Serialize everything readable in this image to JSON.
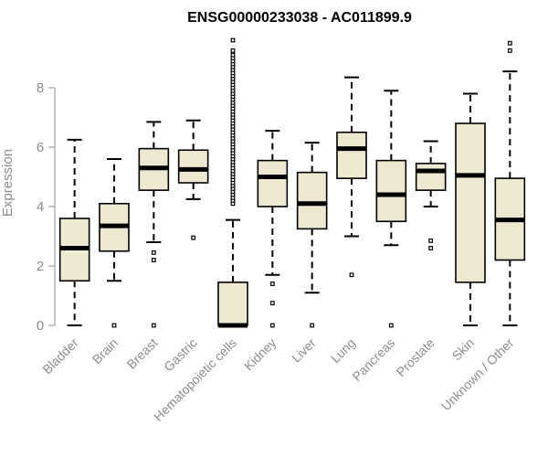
{
  "chart_data": {
    "type": "boxplot",
    "title": "ENSG00000233038 - AC011899.9",
    "xlabel": "",
    "ylabel": "Expression",
    "ylim": [
      0,
      9.8
    ],
    "yticks": [
      0,
      2,
      4,
      6,
      8
    ],
    "box_color": "#ede8d0",
    "outline_color": "#000000",
    "axis_color": "#8c8c8c",
    "categories": [
      "Bladder",
      "Brain",
      "Breast",
      "Gastric",
      "Hematopoietic cells",
      "Kidney",
      "Liver",
      "Lung",
      "Pancreas",
      "Prostate",
      "Skin",
      "Unknown / Other"
    ],
    "boxes": [
      {
        "name": "Bladder",
        "whisker_low": 0,
        "q1": 1.5,
        "median": 2.6,
        "q3": 3.6,
        "whisker_high": 6.25,
        "outliers": []
      },
      {
        "name": "Brain",
        "whisker_low": 1.5,
        "q1": 2.5,
        "median": 3.35,
        "q3": 4.1,
        "whisker_high": 5.6,
        "outliers": [
          0
        ]
      },
      {
        "name": "Breast",
        "whisker_low": 2.8,
        "q1": 4.55,
        "median": 5.3,
        "q3": 5.95,
        "whisker_high": 6.85,
        "outliers": [
          0,
          2.2,
          2.45
        ]
      },
      {
        "name": "Gastric",
        "whisker_low": 4.25,
        "q1": 4.8,
        "median": 5.25,
        "q3": 5.9,
        "whisker_high": 6.9,
        "outliers": [
          2.95
        ]
      },
      {
        "name": "Hematopoietic cells",
        "whisker_low": 0,
        "q1": 0,
        "median": 0,
        "q3": 1.45,
        "whisker_high": 3.55,
        "outliers": [
          4.1,
          4.2,
          4.3,
          4.4,
          4.5,
          4.6,
          4.7,
          4.8,
          4.9,
          5.0,
          5.1,
          5.2,
          5.3,
          5.4,
          5.5,
          5.6,
          5.7,
          5.8,
          5.9,
          6.0,
          6.1,
          6.2,
          6.3,
          6.4,
          6.5,
          6.6,
          6.7,
          6.8,
          6.9,
          7.0,
          7.1,
          7.2,
          7.3,
          7.4,
          7.5,
          7.6,
          7.7,
          7.8,
          7.9,
          8.0,
          8.1,
          8.2,
          8.3,
          8.4,
          8.5,
          8.6,
          8.7,
          8.8,
          8.9,
          9.0,
          9.1,
          9.25,
          9.6
        ]
      },
      {
        "name": "Kidney",
        "whisker_low": 1.7,
        "q1": 4.0,
        "median": 5.0,
        "q3": 5.55,
        "whisker_high": 6.55,
        "outliers": [
          0,
          0.75,
          1.4
        ]
      },
      {
        "name": "Liver",
        "whisker_low": 1.1,
        "q1": 3.25,
        "median": 4.1,
        "q3": 5.15,
        "whisker_high": 6.15,
        "outliers": [
          0
        ]
      },
      {
        "name": "Lung",
        "whisker_low": 3.0,
        "q1": 4.95,
        "median": 5.95,
        "q3": 6.5,
        "whisker_high": 8.35,
        "outliers": [
          1.7
        ]
      },
      {
        "name": "Pancreas",
        "whisker_low": 2.7,
        "q1": 3.5,
        "median": 4.4,
        "q3": 5.55,
        "whisker_high": 7.9,
        "outliers": [
          0
        ]
      },
      {
        "name": "Prostate",
        "whisker_low": 4.0,
        "q1": 4.55,
        "median": 5.2,
        "q3": 5.45,
        "whisker_high": 6.2,
        "outliers": [
          2.6,
          2.85
        ]
      },
      {
        "name": "Skin",
        "whisker_low": 0,
        "q1": 1.45,
        "median": 5.05,
        "q3": 6.8,
        "whisker_high": 7.8,
        "outliers": []
      },
      {
        "name": "Unknown / Other",
        "whisker_low": 0,
        "q1": 2.2,
        "median": 3.55,
        "q3": 4.95,
        "whisker_high": 8.55,
        "outliers": [
          9.25,
          9.5
        ]
      }
    ]
  }
}
